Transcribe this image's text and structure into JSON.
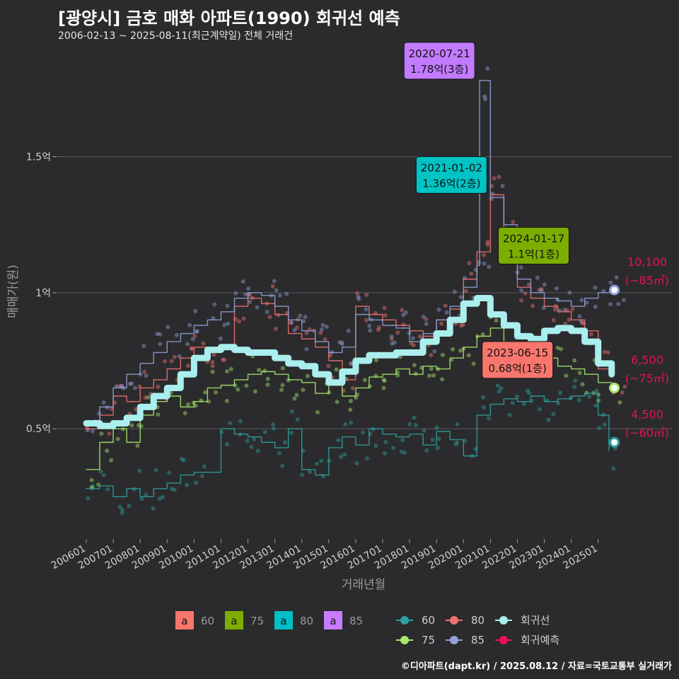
{
  "header": {
    "title": "[광양시] 금호 매화 아파트(1990) 회귀선 예측",
    "subtitle": "2006-02-13 ~ 2025-08-11(최근계약일) 전체 거래건"
  },
  "footer": {
    "credit": "©디아파트(dapt.kr) / 2025.08.12 / 자료=국토교통부 실거래가"
  },
  "colors": {
    "background": "#2b2b2d",
    "grid": "#5a5a5c",
    "s60": "#2fa0a0",
    "s75": "#a6e86c",
    "s80": "#f07070",
    "s85": "#8fa0d8",
    "regression": "#aaeeee",
    "forecast": "#e8105a"
  },
  "chart_data": {
    "type": "line",
    "title": "[광양시] 금호 매화 아파트(1990) 회귀선 예측",
    "xlabel": "거래년월",
    "ylabel": "매매가(원)",
    "x_tick_labels": [
      "200601",
      "200701",
      "200801",
      "200901",
      "201001",
      "201101",
      "201201",
      "201301",
      "201401",
      "201501",
      "201601",
      "201701",
      "201801",
      "201901",
      "202001",
      "202101",
      "202201",
      "202301",
      "202401",
      "202501"
    ],
    "x_range": [
      2006.0,
      2025.9
    ],
    "y_ticks": [
      {
        "value": 0.5,
        "label": "0.5억"
      },
      {
        "value": 1.0,
        "label": "1억"
      },
      {
        "value": 1.5,
        "label": "1.5억"
      }
    ],
    "ylim": [
      0.1,
      1.92
    ],
    "grid": true,
    "unit": "억",
    "series": [
      {
        "name": "60",
        "color": "#2fa0a0",
        "x": [
          2006.0,
          2006.5,
          2007.0,
          2007.5,
          2008.0,
          2008.5,
          2009.0,
          2009.5,
          2010.0,
          2011.0,
          2011.5,
          2012.0,
          2012.5,
          2013.0,
          2013.5,
          2014.0,
          2014.5,
          2015.0,
          2015.5,
          2016.0,
          2016.5,
          2017.0,
          2017.5,
          2018.0,
          2018.5,
          2019.0,
          2019.5,
          2020.0,
          2020.5,
          2021.0,
          2021.5,
          2022.0,
          2022.5,
          2023.0,
          2023.5,
          2024.0,
          2024.5,
          2025.0,
          2025.4
        ],
        "values": [
          0.28,
          0.29,
          0.25,
          0.28,
          0.25,
          0.28,
          0.3,
          0.33,
          0.34,
          0.5,
          0.48,
          0.47,
          0.45,
          0.43,
          0.5,
          0.35,
          0.33,
          0.43,
          0.47,
          0.44,
          0.5,
          0.48,
          0.47,
          0.48,
          0.44,
          0.49,
          0.46,
          0.4,
          0.55,
          0.59,
          0.61,
          0.6,
          0.62,
          0.6,
          0.61,
          0.62,
          0.63,
          0.55,
          0.42
        ]
      },
      {
        "name": "75",
        "color": "#a6e86c",
        "x": [
          2006.0,
          2006.5,
          2007.0,
          2007.5,
          2008.0,
          2008.5,
          2009.0,
          2009.5,
          2010.0,
          2010.5,
          2011.0,
          2011.5,
          2012.0,
          2012.5,
          2013.0,
          2013.5,
          2014.0,
          2014.5,
          2015.0,
          2015.5,
          2016.0,
          2016.5,
          2017.0,
          2017.5,
          2018.0,
          2018.5,
          2019.0,
          2019.5,
          2020.0,
          2020.5,
          2021.0,
          2021.5,
          2022.0,
          2022.5,
          2023.0,
          2023.5,
          2024.0,
          2024.5,
          2025.0,
          2025.5
        ],
        "values": [
          0.35,
          0.45,
          0.5,
          0.45,
          0.55,
          0.6,
          0.62,
          0.58,
          0.6,
          0.65,
          0.66,
          0.68,
          0.7,
          0.71,
          0.7,
          0.68,
          0.67,
          0.63,
          0.66,
          0.62,
          0.65,
          0.69,
          0.7,
          0.72,
          0.7,
          0.73,
          0.72,
          0.76,
          0.8,
          0.84,
          0.87,
          0.82,
          0.8,
          0.78,
          0.76,
          0.73,
          0.72,
          0.7,
          0.67,
          0.65
        ]
      },
      {
        "name": "80",
        "color": "#f07070",
        "x": [
          2006.0,
          2006.5,
          2007.0,
          2007.5,
          2008.0,
          2008.5,
          2009.0,
          2009.5,
          2010.0,
          2010.5,
          2011.0,
          2011.5,
          2012.0,
          2012.5,
          2013.0,
          2013.5,
          2014.0,
          2014.5,
          2015.0,
          2015.5,
          2016.0,
          2016.5,
          2017.0,
          2017.5,
          2018.0,
          2018.5,
          2019.0,
          2019.5,
          2020.0,
          2020.5,
          2021.0,
          2021.5,
          2022.0,
          2022.5,
          2023.0,
          2023.5,
          2024.0,
          2024.5,
          2025.0,
          2025.5
        ],
        "values": [
          0.5,
          0.55,
          0.62,
          0.6,
          0.65,
          0.68,
          0.72,
          0.76,
          0.8,
          0.78,
          0.8,
          0.95,
          0.98,
          0.96,
          0.92,
          0.85,
          0.83,
          0.8,
          0.75,
          0.68,
          0.95,
          0.92,
          0.9,
          0.88,
          0.86,
          0.84,
          0.9,
          0.94,
          1.05,
          1.15,
          1.36,
          1.2,
          1.02,
          0.98,
          0.95,
          0.93,
          0.9,
          0.86,
          0.72,
          0.7
        ]
      },
      {
        "name": "85",
        "color": "#8fa0d8",
        "x": [
          2006.0,
          2006.5,
          2007.0,
          2007.5,
          2008.0,
          2008.5,
          2009.0,
          2009.5,
          2010.0,
          2010.5,
          2011.0,
          2011.5,
          2012.0,
          2012.5,
          2013.0,
          2013.5,
          2014.0,
          2014.5,
          2015.0,
          2015.5,
          2016.0,
          2016.5,
          2017.0,
          2017.5,
          2018.0,
          2018.5,
          2019.0,
          2019.5,
          2020.0,
          2020.5,
          2020.6,
          2021.0,
          2021.5,
          2022.0,
          2022.5,
          2023.0,
          2023.5,
          2024.0,
          2024.5,
          2025.0,
          2025.5
        ],
        "values": [
          0.52,
          0.58,
          0.65,
          0.7,
          0.74,
          0.78,
          0.82,
          0.85,
          0.88,
          0.9,
          0.93,
          0.98,
          1.0,
          0.99,
          0.95,
          0.9,
          0.86,
          0.82,
          0.78,
          0.8,
          0.92,
          0.9,
          0.88,
          0.87,
          0.82,
          0.85,
          0.9,
          0.95,
          1.02,
          1.1,
          1.78,
          1.35,
          1.25,
          1.05,
          1.0,
          0.98,
          0.97,
          0.95,
          0.98,
          1.0,
          1.01
        ]
      },
      {
        "name": "회귀선",
        "color": "#aaeeee",
        "x": [
          2006.0,
          2006.5,
          2007.0,
          2007.5,
          2008.0,
          2008.5,
          2009.0,
          2009.5,
          2010.0,
          2010.5,
          2011.0,
          2011.5,
          2012.0,
          2012.5,
          2013.0,
          2013.5,
          2014.0,
          2014.5,
          2015.0,
          2015.5,
          2016.0,
          2016.5,
          2017.0,
          2017.5,
          2018.0,
          2018.5,
          2019.0,
          2019.5,
          2020.0,
          2020.5,
          2021.0,
          2021.5,
          2022.0,
          2022.5,
          2023.0,
          2023.5,
          2024.0,
          2024.5,
          2025.0,
          2025.5
        ],
        "values": [
          0.52,
          0.51,
          0.52,
          0.54,
          0.58,
          0.62,
          0.65,
          0.7,
          0.76,
          0.79,
          0.8,
          0.79,
          0.78,
          0.78,
          0.76,
          0.74,
          0.73,
          0.7,
          0.67,
          0.71,
          0.75,
          0.77,
          0.77,
          0.78,
          0.78,
          0.82,
          0.85,
          0.9,
          0.96,
          0.98,
          0.92,
          0.88,
          0.84,
          0.83,
          0.86,
          0.87,
          0.86,
          0.82,
          0.74,
          0.7
        ]
      }
    ],
    "annotations": [
      {
        "date": "2020-07-21",
        "text": "1.78억(3층)",
        "x": 2020.55,
        "y": 1.78,
        "color": "#c27bff"
      },
      {
        "date": "2021-01-02",
        "text": "1.36억(2층)",
        "x": 2021.0,
        "y": 1.36,
        "color": "#00c4c4"
      },
      {
        "date": "2024-01-17",
        "text": "1.1억(1층)",
        "x": 2024.05,
        "y": 1.1,
        "color": "#7cae00"
      },
      {
        "date": "2023-06-15",
        "text": "0.68억(1층)",
        "x": 2023.45,
        "y": 0.68,
        "color": "#f8766d"
      }
    ],
    "forecasts": [
      {
        "value": "10,100",
        "area": "(~85㎡)",
        "x": 2025.6,
        "y": 1.01,
        "color": "#8fa0d8"
      },
      {
        "value": "6,500",
        "area": "(~75㎡)",
        "x": 2025.6,
        "y": 0.65,
        "color": "#a6e86c"
      },
      {
        "value": "4,500",
        "area": "(~60㎡)",
        "x": 2025.6,
        "y": 0.45,
        "color": "#2fa0a0"
      }
    ],
    "legend": {
      "position": "bottom",
      "label_box_glyph": "a",
      "label_boxes": [
        {
          "name": "60",
          "color": "#f8766d"
        },
        {
          "name": "75",
          "color": "#7cae00"
        },
        {
          "name": "80",
          "color": "#00bfc4"
        },
        {
          "name": "85",
          "color": "#c77cff"
        }
      ],
      "lines": [
        {
          "name": "60",
          "color": "#2fa0a0"
        },
        {
          "name": "80",
          "color": "#f07070"
        },
        {
          "name": "회귀선",
          "color": "#aaeeee"
        },
        {
          "name": "75",
          "color": "#a6e86c"
        },
        {
          "name": "85",
          "color": "#8fa0d8"
        },
        {
          "name": "회귀예측",
          "color": "#e8105a"
        }
      ]
    }
  }
}
